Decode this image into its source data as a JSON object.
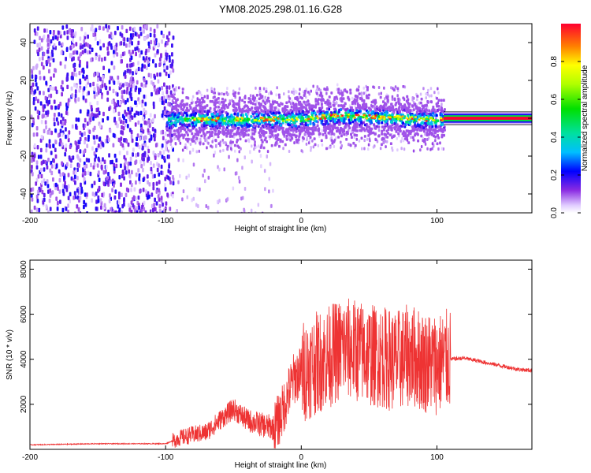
{
  "chart_data": [
    {
      "type": "heatmap",
      "title": "YM08.2025.298.01.16.G28",
      "xlabel": "Height of straight line (km)",
      "ylabel": "Frequency (Hz)",
      "xlim": [
        -200,
        170
      ],
      "ylim": [
        -50,
        50
      ],
      "x_ticks": [
        "-200",
        "-100",
        "0",
        "100"
      ],
      "x_tick_values": [
        -200,
        -100,
        0,
        100
      ],
      "y_ticks": [
        "-40",
        "-20",
        "0",
        "20",
        "40"
      ],
      "y_tick_values": [
        -40,
        -20,
        0,
        20,
        40
      ],
      "colorbar": {
        "label": "Normalized spectral amplitude",
        "range": [
          0,
          1
        ],
        "ticks": [
          "0.0",
          "0.2",
          "0.4",
          "0.6",
          "0.8"
        ],
        "tick_values": [
          0.0,
          0.2,
          0.4,
          0.6,
          0.8
        ]
      },
      "regions": [
        {
          "description": "noise",
          "x_range": [
            -200,
            -95
          ],
          "frequency_range": [
            -50,
            50
          ],
          "amplitude": 0.2
        },
        {
          "description": "signal",
          "x_range": [
            -100,
            105
          ],
          "frequency_center": 0,
          "frequency_width": 8,
          "amplitude": 0.5
        },
        {
          "description": "peaked line",
          "x_range": [
            105,
            170
          ],
          "frequency_center": 0,
          "amplitude": 1.0
        }
      ],
      "ridge_x": [
        -100,
        -50,
        -20,
        0,
        10,
        30,
        60,
        90,
        105
      ],
      "ridge_freq": [
        0,
        0,
        0,
        0,
        1,
        2,
        1,
        0,
        0
      ]
    },
    {
      "type": "line",
      "xlabel": "Height of straight line (km)",
      "ylabel": "SNR (10 * v/v)",
      "xlim": [
        -200,
        170
      ],
      "ylim": [
        0,
        8400
      ],
      "x_ticks": [
        "-200",
        "-100",
        "0",
        "100"
      ],
      "x_tick_values": [
        -200,
        -100,
        0,
        100
      ],
      "y_ticks": [
        "2000",
        "4000",
        "6000",
        "8000"
      ],
      "y_tick_values": [
        2000,
        4000,
        6000,
        8000
      ],
      "series": [
        {
          "name": "SNR",
          "color": "#ee3333",
          "x": [
            -200,
            -150,
            -100,
            -90,
            -80,
            -70,
            -60,
            -50,
            -40,
            -30,
            -20,
            -15,
            -10,
            -5,
            0,
            10,
            20,
            30,
            40,
            50,
            60,
            70,
            80,
            90,
            100,
            110,
            120,
            140,
            160,
            170
          ],
          "y": [
            200,
            250,
            250,
            500,
            650,
            750,
            1300,
            1800,
            1300,
            1100,
            950,
            1500,
            2400,
            3200,
            3400,
            3800,
            4100,
            4500,
            4400,
            4200,
            4100,
            3900,
            4200,
            3900,
            3800,
            4000,
            4050,
            3800,
            3550,
            3500
          ]
        }
      ]
    }
  ]
}
